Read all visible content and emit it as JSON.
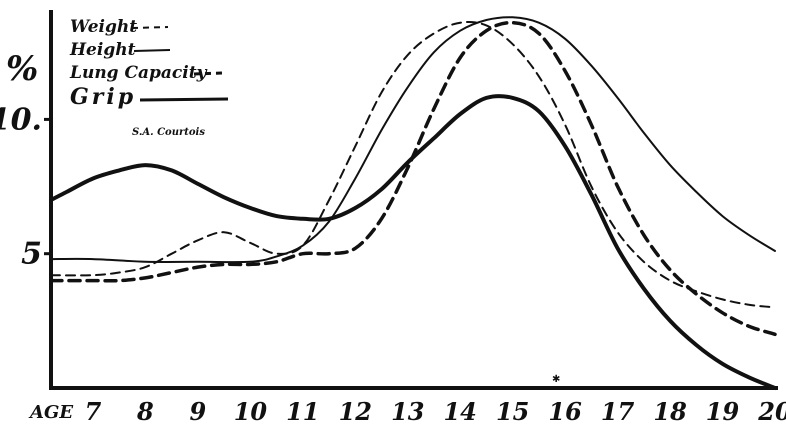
{
  "chart_data": {
    "type": "line",
    "x_axis_label": "AGE",
    "y_axis_label": "%",
    "x_ticks": [
      "7",
      "8",
      "9",
      "10",
      "11",
      "12",
      "13",
      "14",
      "15",
      "16",
      "17",
      "18",
      "19",
      "20"
    ],
    "y_ticks": [
      "5",
      "10"
    ],
    "xlim": [
      6.2,
      20
    ],
    "ylim": [
      0,
      13.7
    ],
    "grid": false,
    "legend_position": "top-left",
    "credit": "S.A. Courtois",
    "series": [
      {
        "name": "Weight",
        "style": "dashed",
        "x": [
          6.2,
          7,
          7.5,
          8,
          8.5,
          9,
          9.5,
          10,
          10.5,
          11,
          11.5,
          12,
          12.5,
          13,
          13.5,
          14,
          14.5,
          15,
          15.5,
          16,
          16.5,
          17,
          17.5,
          18,
          18.5,
          19,
          19.5,
          20
        ],
        "y": [
          4.2,
          4.2,
          4.3,
          4.5,
          5.0,
          5.5,
          5.8,
          5.4,
          5.0,
          5.3,
          7.0,
          9.0,
          11.0,
          12.4,
          13.2,
          13.6,
          13.5,
          12.8,
          11.6,
          9.8,
          7.5,
          5.8,
          4.7,
          4.0,
          3.6,
          3.3,
          3.1,
          3.0
        ]
      },
      {
        "name": "Height",
        "style": "solid-thin",
        "x": [
          6.2,
          7,
          8,
          9,
          10,
          10.5,
          11,
          11.5,
          12,
          12.5,
          13,
          13.5,
          14,
          14.5,
          15,
          15.5,
          16,
          16.5,
          17,
          17.5,
          18,
          18.5,
          19,
          19.5,
          20
        ],
        "y": [
          4.8,
          4.8,
          4.7,
          4.7,
          4.7,
          4.9,
          5.3,
          6.2,
          7.8,
          9.6,
          11.2,
          12.5,
          13.3,
          13.7,
          13.8,
          13.6,
          13.0,
          12.0,
          10.8,
          9.5,
          8.3,
          7.3,
          6.4,
          5.7,
          5.1
        ]
      },
      {
        "name": "Lung Capacity",
        "style": "dashed-heavy",
        "x": [
          6.2,
          7,
          7.5,
          8,
          8.5,
          9,
          9.5,
          10,
          10.5,
          11,
          11.5,
          12,
          12.5,
          13,
          13.5,
          14,
          14.5,
          15,
          15.5,
          16,
          16.5,
          17,
          17.5,
          18,
          18.5,
          19,
          19.5,
          20
        ],
        "y": [
          4.0,
          4.0,
          4.0,
          4.1,
          4.3,
          4.5,
          4.6,
          4.6,
          4.7,
          5.0,
          5.0,
          5.2,
          6.3,
          8.2,
          10.4,
          12.3,
          13.3,
          13.6,
          13.2,
          11.8,
          9.8,
          7.5,
          5.7,
          4.4,
          3.5,
          2.8,
          2.3,
          2.0
        ]
      },
      {
        "name": "Grip",
        "style": "solid-heavy",
        "x": [
          6.2,
          6.5,
          7,
          7.5,
          8,
          8.5,
          9,
          9.5,
          10,
          10.5,
          11,
          11.5,
          12,
          12.5,
          13,
          13.5,
          14,
          14.5,
          15,
          15.5,
          16,
          16.5,
          17,
          17.5,
          18,
          18.5,
          19,
          19.5,
          20
        ],
        "y": [
          7.0,
          7.3,
          7.8,
          8.1,
          8.3,
          8.1,
          7.6,
          7.1,
          6.7,
          6.4,
          6.3,
          6.3,
          6.7,
          7.4,
          8.4,
          9.3,
          10.2,
          10.8,
          10.8,
          10.3,
          9.0,
          7.2,
          5.2,
          3.7,
          2.5,
          1.6,
          0.9,
          0.4,
          0.0
        ]
      }
    ],
    "legend": [
      {
        "label": "Weight",
        "style": "dashed"
      },
      {
        "label": "Height",
        "style": "solid-thin"
      },
      {
        "label": "Lung Capacity",
        "style": "dashed-heavy"
      },
      {
        "label": "Grip",
        "style": "solid-heavy"
      }
    ]
  }
}
